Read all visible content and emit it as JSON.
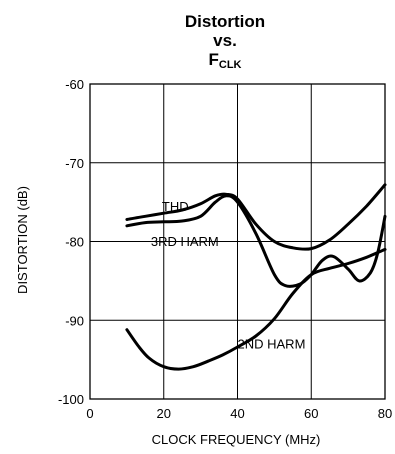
{
  "chart_data": {
    "type": "line",
    "title": {
      "line1": "Distortion",
      "line2": "vs.",
      "line3_main": "F",
      "line3_sub": "CLK"
    },
    "xlabel": "CLOCK FREQUENCY (MHz)",
    "ylabel": "DISTORTION  (dB)",
    "xlim": [
      0,
      80
    ],
    "ylim": [
      -100,
      -60
    ],
    "x_ticks": [
      0,
      20,
      40,
      60,
      80
    ],
    "y_ticks": [
      -60,
      -70,
      -80,
      -90,
      -100
    ],
    "x_tick_labels": [
      "0",
      "20",
      "40",
      "60",
      "80"
    ],
    "y_tick_labels": [
      "-60",
      "-70",
      "-80",
      "-90",
      "-100"
    ],
    "grid": true,
    "series": [
      {
        "name": "THD",
        "x": [
          10,
          15,
          20,
          25,
          30,
          34,
          37,
          40,
          45,
          50,
          55,
          60,
          65,
          70,
          75,
          80
        ],
        "y": [
          -77.2,
          -76.8,
          -76.4,
          -76.0,
          -75.2,
          -74.2,
          -74.0,
          -74.6,
          -77.8,
          -80.0,
          -80.8,
          -80.9,
          -79.8,
          -77.8,
          -75.5,
          -72.8
        ]
      },
      {
        "name": "3RD HARM",
        "x": [
          10,
          15,
          20,
          25,
          30,
          34,
          37,
          40,
          45,
          50,
          53,
          57,
          60,
          63,
          66,
          70,
          73,
          76,
          78,
          80
        ],
        "y": [
          -78.0,
          -77.6,
          -77.5,
          -77.4,
          -76.8,
          -75.0,
          -74.2,
          -75.0,
          -79.0,
          -84.2,
          -85.6,
          -85.4,
          -84.2,
          -82.4,
          -81.9,
          -83.5,
          -85.0,
          -84.0,
          -81.5,
          -76.8
        ]
      },
      {
        "name": "2ND HARM",
        "x": [
          10,
          13,
          16,
          20,
          24,
          28,
          32,
          36,
          40,
          45,
          50,
          55,
          60,
          65,
          70,
          75,
          80
        ],
        "y": [
          -91.2,
          -93.2,
          -94.8,
          -95.9,
          -96.2,
          -95.9,
          -95.2,
          -94.4,
          -93.4,
          -92.0,
          -89.8,
          -86.6,
          -84.2,
          -83.4,
          -82.8,
          -82.0,
          -81.0
        ]
      }
    ],
    "annotations": [
      {
        "text": "THD",
        "x": 19.5,
        "y": -76.1
      },
      {
        "text": "3RD HARM",
        "x": 16.5,
        "y": -80.6
      },
      {
        "text": "2ND HARM",
        "x": 40,
        "y": -93.6
      }
    ]
  }
}
